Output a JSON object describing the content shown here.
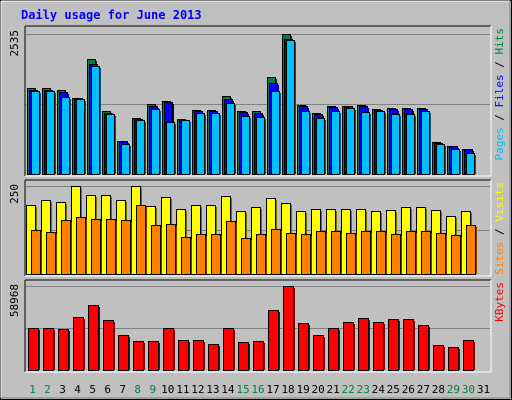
{
  "chart_data": {
    "type": "bar",
    "title": "Daily usage for June 2013",
    "categories": [
      "1",
      "2",
      "3",
      "4",
      "5",
      "6",
      "7",
      "8",
      "9",
      "10",
      "11",
      "12",
      "13",
      "14",
      "15",
      "16",
      "17",
      "18",
      "19",
      "20",
      "21",
      "22",
      "23",
      "24",
      "25",
      "26",
      "27",
      "28",
      "29",
      "30",
      "31"
    ],
    "weekend_days": [
      "1",
      "2",
      "8",
      "9",
      "15",
      "16",
      "22",
      "23",
      "29",
      "30"
    ],
    "panels": [
      {
        "id": "hits",
        "max_label": "2535",
        "ylim": [
          0,
          2535
        ],
        "right_label": [
          {
            "text": "Pages",
            "color": "#00c0ff"
          },
          {
            "text": " / ",
            "color": "#000000"
          },
          {
            "text": "Files",
            "color": "#0000ff"
          },
          {
            "text": " / ",
            "color": "#000000"
          },
          {
            "text": "Hits",
            "color": "#008040"
          }
        ],
        "series": [
          {
            "name": "Hits",
            "color": "#008040",
            "values": [
              1560,
              1560,
              1520,
              1380,
              2080,
              1140,
              600,
              1020,
              1260,
              1320,
              1000,
              1160,
              1160,
              1410,
              1140,
              1140,
              1760,
              2540,
              1250,
              1100,
              1240,
              1240,
              1250,
              1180,
              1190,
              1190,
              1190,
              580,
              510,
              460,
              null
            ]
          },
          {
            "name": "Files",
            "color": "#0000ff",
            "values": [
              1530,
              1520,
              1490,
              1370,
              1990,
              1100,
              590,
              1000,
              1230,
              1300,
              980,
              1140,
              1140,
              1350,
              1120,
              1100,
              1650,
              2450,
              1230,
              1080,
              1210,
              1230,
              1240,
              1160,
              1170,
              1170,
              1170,
              560,
              500,
              450,
              null
            ]
          },
          {
            "name": "Pages",
            "color": "#00c0ff",
            "values": [
              1510,
              1510,
              1390,
              1350,
              1950,
              1090,
              540,
              980,
              1170,
              940,
              970,
              1100,
              1110,
              1280,
              1050,
              1040,
              1510,
              2420,
              1140,
              1020,
              1140,
              1200,
              1130,
              1140,
              1080,
              1090,
              1140,
              540,
              460,
              380,
              null
            ]
          }
        ]
      },
      {
        "id": "visits",
        "max_label": "250",
        "ylim": [
          0,
          250
        ],
        "right_label": [
          {
            "text": "Sites",
            "color": "#ff8000"
          },
          {
            "text": " / ",
            "color": "#000000"
          },
          {
            "text": "Visits",
            "color": "#ffff00"
          }
        ],
        "series": [
          {
            "name": "Visits",
            "color": "#ffff00",
            "values": [
              197,
              209,
              204,
              250,
              225,
              225,
              211,
              250,
              194,
              219,
              185,
              196,
              196,
              222,
              178,
              190,
              217,
              202,
              179,
              186,
              186,
              186,
              186,
              178,
              182,
              189,
              189,
              181,
              166,
              180,
              null
            ]
          },
          {
            "name": "Sites",
            "color": "#ff8000",
            "values": [
              124,
              119,
              152,
              162,
              157,
              157,
              152,
              195,
              138,
              143,
              105,
              114,
              114,
              150,
              102,
              114,
              128,
              117,
              115,
              121,
              121,
              116,
              121,
              121,
              114,
              122,
              122,
              116,
              111,
              138,
              null
            ]
          }
        ]
      },
      {
        "id": "kbytes",
        "max_label": "58968",
        "ylim": [
          0,
          58968
        ],
        "right_label": [
          {
            "text": "KBytes",
            "color": "#ff0000"
          }
        ],
        "series": [
          {
            "name": "KBytes",
            "color": "#ff0000",
            "values": [
              29400,
              29400,
              28500,
              37000,
              45500,
              34800,
              24600,
              20600,
              20600,
              29400,
              21300,
              21300,
              18000,
              29400,
              19700,
              20500,
              42400,
              58968,
              32900,
              24600,
              29400,
              34000,
              36800,
              33400,
              35600,
              35600,
              31900,
              17200,
              16400,
              21300,
              null
            ]
          }
        ]
      }
    ]
  }
}
